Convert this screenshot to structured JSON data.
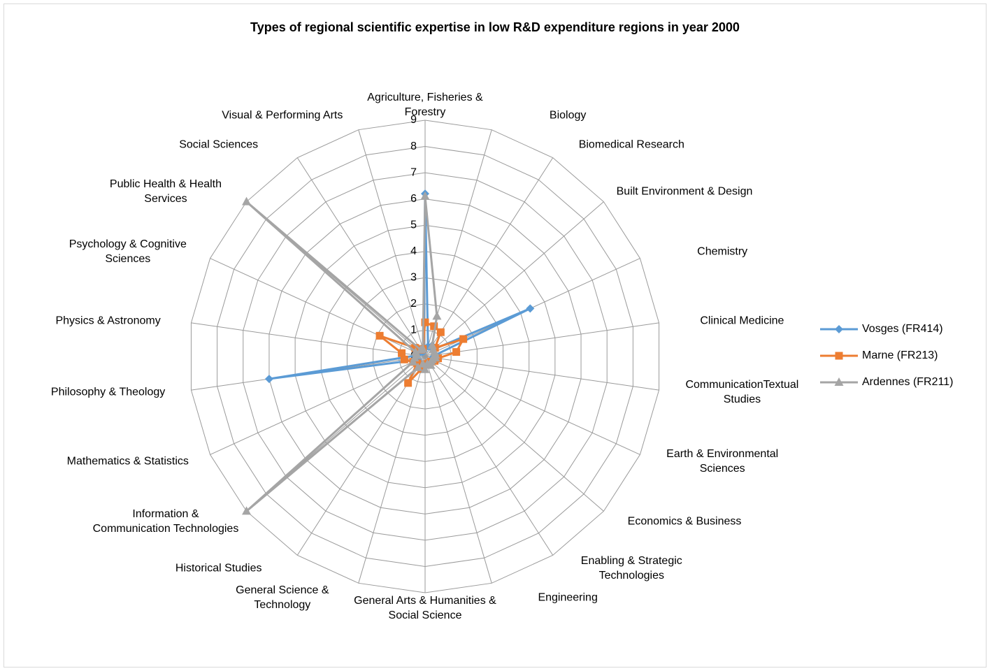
{
  "chart_data": {
    "type": "radar",
    "title": "Types of regional scientific expertise in low R&D expenditure regions in year 2000",
    "categories": [
      "Agriculture, Fisheries & Forestry",
      "Biology",
      "Biomedical Research",
      "Built Environment & Design",
      "Chemistry",
      "Clinical Medicine",
      "CommunicationTextual Studies",
      "Earth & Environmental Sciences",
      "Economics & Business",
      "Enabling & Strategic Technologies",
      "Engineering",
      "General Arts & Humanities &  Social Science",
      "General Science & Technology",
      "Historical Studies",
      "Information & Communication Technologies",
      "Mathematics & Statistics",
      "Philosophy & Theology",
      "Physics & Astronomy",
      "Psychology & Cognitive Sciences",
      "Public Health & Health Services",
      "Social Sciences",
      "Visual & Performing Arts"
    ],
    "series": [
      {
        "name": "Vosges (FR414)",
        "color": "#5b9bd5",
        "marker": "diamond",
        "values": [
          6.2,
          0.4,
          0.5,
          0.4,
          4.4,
          0.4,
          0.3,
          0.3,
          0.3,
          0.3,
          0.3,
          0.3,
          0.3,
          0.4,
          0.3,
          0.3,
          6.0,
          0.3,
          0.3,
          0.3,
          0.2,
          0.2
        ]
      },
      {
        "name": "Marne (FR213)",
        "color": "#ed7d31",
        "marker": "square",
        "values": [
          1.3,
          1.2,
          1.1,
          0.5,
          1.6,
          1.2,
          0.5,
          0.4,
          0.3,
          0.3,
          0.3,
          0.3,
          0.5,
          1.2,
          0.4,
          0.5,
          0.8,
          0.9,
          1.9,
          0.5,
          0.3,
          0.3
        ]
      },
      {
        "name": "Ardennes (FR211)",
        "color": "#a5a5a5",
        "marker": "triangle",
        "values": [
          6.1,
          1.6,
          0.5,
          0.4,
          0.4,
          0.4,
          0.4,
          0.3,
          0.3,
          0.4,
          0.3,
          0.5,
          0.3,
          0.5,
          9.0,
          0.5,
          0.4,
          0.3,
          0.4,
          9.0,
          0.3,
          0.3
        ]
      }
    ],
    "ylim": [
      0,
      9
    ],
    "yticks": [
      0,
      1,
      2,
      3,
      4,
      5,
      6,
      7,
      8,
      9
    ],
    "grid": true,
    "legend": "right"
  }
}
